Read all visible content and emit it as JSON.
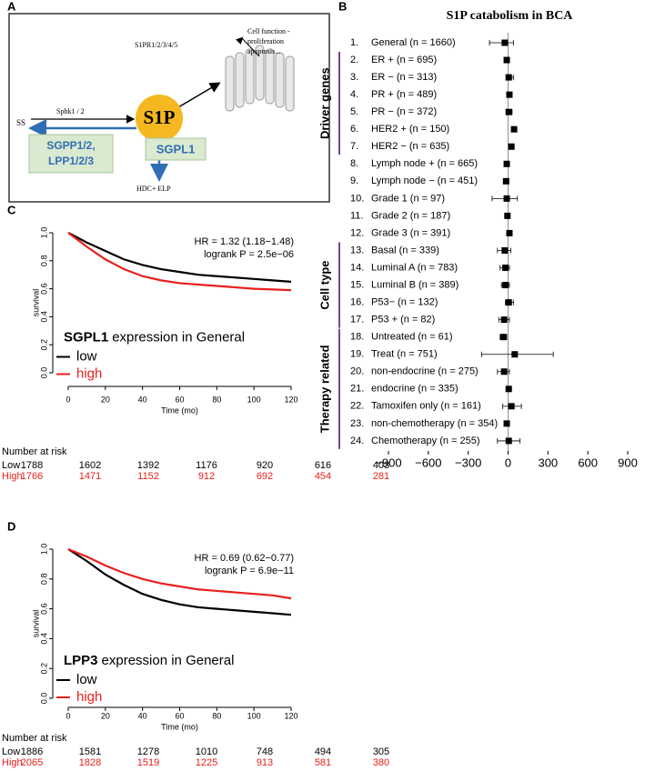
{
  "diagram": {
    "panel": "A",
    "receptor": "S1PR1/2/3/4/5",
    "outcome": [
      "Cell function -",
      "proliferation",
      "apoptosis..."
    ],
    "kinase": "Sphk1 / 2",
    "substrate": "SS",
    "center": "S1P",
    "phosphatases": [
      "SGPP1/2,",
      "LPP1/2/3"
    ],
    "lyase": "SGPL1",
    "products": "HDC+ ELP"
  },
  "chart_data": [
    {
      "type": "forest",
      "panel": "B",
      "title": "S1P catabolism in BCA",
      "row_numbers": [
        "1.",
        "2.",
        "3.",
        "4.",
        "5.",
        "6.",
        "7.",
        "8.",
        "9.",
        "10.",
        "11.",
        "12.",
        "13.",
        "14.",
        "15.",
        "16.",
        "17.",
        "18.",
        "19.",
        "20.",
        "21.",
        "22.",
        "23.",
        "24."
      ],
      "categories": [
        "General (n = 1660)",
        "ER + (n = 695)",
        "ER − (n = 313)",
        "PR + (n = 489)",
        "PR − (n = 372)",
        "HER2 + (n = 150)",
        "HER2 − (n = 635)",
        "Lymph node + (n = 665)",
        "Lymph node − (n = 451)",
        "Grade 1 (n = 97)",
        "Grade 2 (n = 187)",
        "Grade 3 (n = 391)",
        "Basal (n = 339)",
        "Luminal A (n = 783)",
        "Luminal B (n = 389)",
        "P53− (n = 132)",
        "P53 + (n = 82)",
        "Untreated (n = 61)",
        "Treat (n = 751)",
        "non-endocrine (n = 275)",
        "endocrine (n = 335)",
        "Tamoxifen only (n = 161)",
        "non-chemotherapy (n = 354)",
        "Chemotherapy (n = 255)"
      ],
      "values": [
        -25,
        -10,
        5,
        10,
        5,
        45,
        25,
        -10,
        -15,
        -10,
        -5,
        10,
        -25,
        -20,
        -20,
        5,
        -30,
        -35,
        50,
        -30,
        5,
        25,
        -10,
        5
      ],
      "lower": [
        -140,
        -20,
        -15,
        0,
        -15,
        30,
        15,
        -20,
        -30,
        -120,
        -15,
        0,
        -80,
        -60,
        -50,
        -20,
        -70,
        -60,
        -200,
        -80,
        -10,
        -40,
        -30,
        -80
      ],
      "upper": [
        40,
        5,
        40,
        20,
        30,
        60,
        35,
        0,
        0,
        70,
        5,
        20,
        20,
        10,
        10,
        40,
        10,
        -10,
        340,
        10,
        20,
        100,
        10,
        90
      ],
      "groups": [
        {
          "label": "Driver genes",
          "first": 1,
          "last": 6
        },
        {
          "label": "Cell type",
          "first": 12,
          "last": 16
        },
        {
          "label": "Therapy related",
          "first": 17,
          "last": 23
        }
      ],
      "color": "#000000",
      "group_color": "#7b3f9e",
      "xlim": [
        -900,
        900
      ],
      "xticks": [
        {
          "value": -900,
          "label": "−900"
        },
        {
          "value": -600,
          "label": "−600"
        },
        {
          "value": -300,
          "label": "−300"
        },
        0,
        300,
        600,
        900
      ]
    },
    {
      "type": "line",
      "panel": "C",
      "xlabel": "Time (mo)",
      "ylabel": "survival",
      "annotations": [
        "HR = 1.32 (1.18−1.48)",
        "logrank P = 2.5e−06"
      ],
      "gene": "SGPL1",
      "legend_title": "expression in General",
      "x": [
        0,
        10,
        20,
        30,
        40,
        50,
        60,
        70,
        80,
        90,
        100,
        110,
        120
      ],
      "series": [
        {
          "name": "low",
          "color": "#000000",
          "values": [
            1.0,
            0.93,
            0.87,
            0.81,
            0.77,
            0.74,
            0.72,
            0.7,
            0.69,
            0.68,
            0.67,
            0.66,
            0.65
          ]
        },
        {
          "name": "high",
          "color": "#e8201c",
          "values": [
            1.0,
            0.9,
            0.81,
            0.74,
            0.69,
            0.66,
            0.64,
            0.63,
            0.62,
            0.61,
            0.6,
            0.595,
            0.59
          ]
        }
      ],
      "xlim": [
        0,
        120
      ],
      "xticks": [
        0,
        20,
        40,
        60,
        80,
        100,
        120
      ],
      "ylim": [
        0,
        1
      ],
      "yticks": [
        {
          "value": 0,
          "label": "0.0"
        },
        0.2,
        0.4,
        0.6,
        0.8,
        {
          "value": 1,
          "label": "1.0"
        }
      ],
      "risk_table": {
        "title": "Number at risk",
        "rows": [
          {
            "name": "Low",
            "color": "#000000",
            "values": [
              1788,
              1602,
              1392,
              1176,
              920,
              616,
              403
            ]
          },
          {
            "name": "High",
            "color": "#e8201c",
            "values": [
              1766,
              1471,
              1152,
              912,
              692,
              454,
              281
            ]
          }
        ]
      }
    },
    {
      "type": "line",
      "panel": "D",
      "xlabel": "Time (mo)",
      "ylabel": "survival",
      "annotations": [
        "HR = 0.69 (0.62−0.77)",
        "logrank P = 6.9e−11"
      ],
      "gene": "LPP3",
      "legend_title": "expression in General",
      "x": [
        0,
        10,
        20,
        30,
        40,
        50,
        60,
        70,
        80,
        90,
        100,
        110,
        120
      ],
      "series": [
        {
          "name": "low",
          "color": "#000000",
          "values": [
            1.0,
            0.92,
            0.83,
            0.76,
            0.7,
            0.66,
            0.63,
            0.61,
            0.6,
            0.59,
            0.58,
            0.57,
            0.56
          ]
        },
        {
          "name": "high",
          "color": "#e8201c",
          "values": [
            1.0,
            0.95,
            0.89,
            0.84,
            0.8,
            0.77,
            0.75,
            0.73,
            0.72,
            0.71,
            0.7,
            0.69,
            0.67
          ]
        }
      ],
      "xlim": [
        0,
        120
      ],
      "xticks": [
        0,
        20,
        40,
        60,
        80,
        100,
        120
      ],
      "ylim": [
        0,
        1
      ],
      "yticks": [
        {
          "value": 0,
          "label": "0.0"
        },
        0.2,
        0.4,
        0.6,
        0.8,
        {
          "value": 1,
          "label": "1.0"
        }
      ],
      "risk_table": {
        "title": "Number at risk",
        "rows": [
          {
            "name": "Low",
            "color": "#000000",
            "values": [
              1886,
              1581,
              1278,
              1010,
              748,
              494,
              305
            ]
          },
          {
            "name": "High",
            "color": "#e8201c",
            "values": [
              2065,
              1828,
              1519,
              1225,
              913,
              581,
              380
            ]
          }
        ]
      }
    }
  ]
}
